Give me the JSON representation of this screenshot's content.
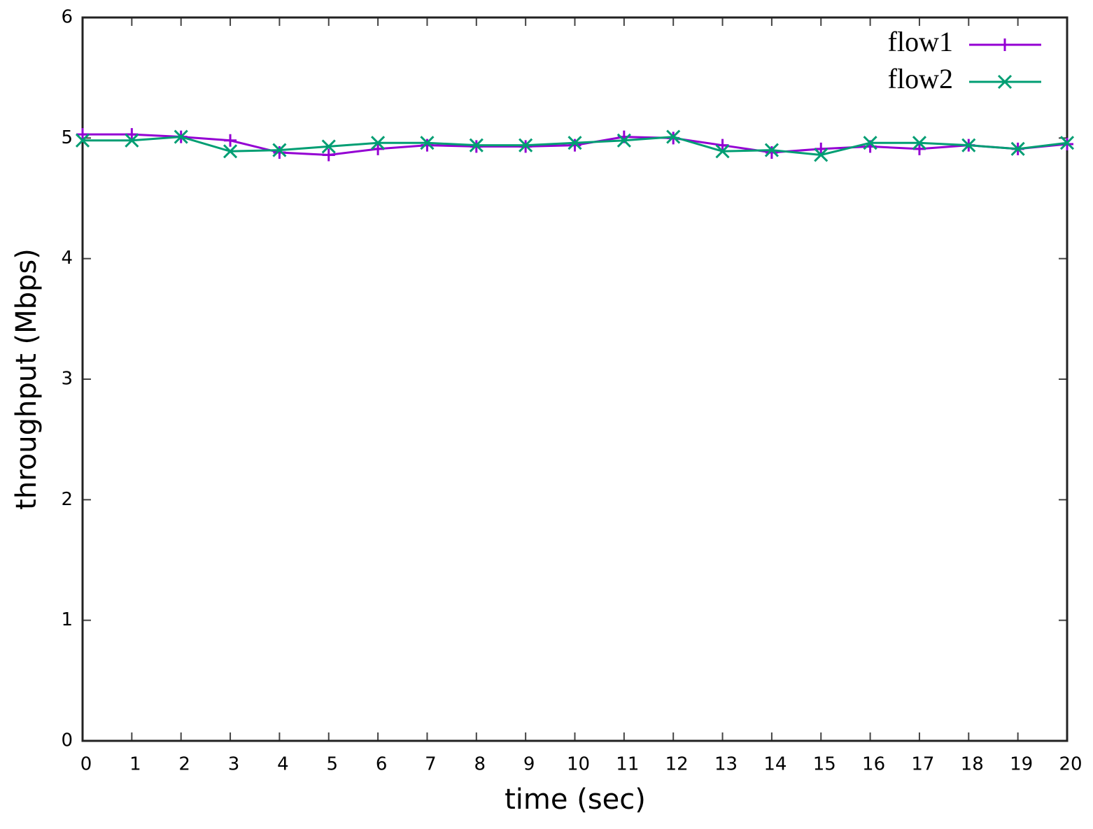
{
  "chart_data": {
    "type": "line",
    "x_label": "time (sec)",
    "y_label": "throughput (Mbps)",
    "x": [
      0,
      1,
      2,
      3,
      4,
      5,
      6,
      7,
      8,
      9,
      10,
      11,
      12,
      13,
      14,
      15,
      16,
      17,
      18,
      19,
      20
    ],
    "series": [
      {
        "name": "flow1",
        "color": "#9400d3",
        "marker": "plus",
        "values": [
          5.03,
          5.03,
          5.01,
          4.98,
          4.88,
          4.86,
          4.91,
          4.94,
          4.93,
          4.93,
          4.94,
          5.01,
          5.0,
          4.94,
          4.88,
          4.91,
          4.93,
          4.91,
          4.94,
          4.91,
          4.95
        ]
      },
      {
        "name": "flow2",
        "color": "#009e73",
        "marker": "cross",
        "values": [
          4.98,
          4.98,
          5.01,
          4.89,
          4.9,
          4.93,
          4.96,
          4.96,
          4.94,
          4.94,
          4.96,
          4.98,
          5.01,
          4.89,
          4.9,
          4.86,
          4.96,
          4.96,
          4.94,
          4.91,
          4.96
        ]
      }
    ],
    "xlim": [
      0,
      20
    ],
    "xticks": [
      0,
      1,
      2,
      3,
      4,
      5,
      6,
      7,
      8,
      9,
      10,
      11,
      12,
      13,
      14,
      15,
      16,
      17,
      18,
      19,
      20
    ],
    "ylim": [
      0,
      6
    ],
    "yticks": [
      0,
      1,
      2,
      3,
      4,
      5,
      6
    ],
    "legend": "top-right"
  }
}
